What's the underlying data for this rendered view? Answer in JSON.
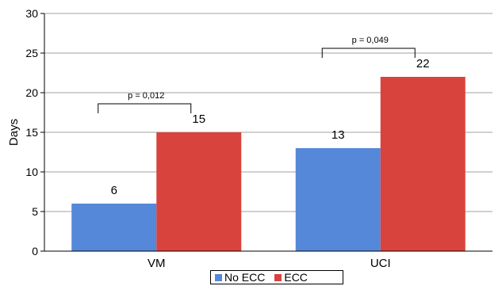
{
  "colors": {
    "no_ecc": "#5588d8",
    "ecc": "#d9433e",
    "grid": "#a0a0a0",
    "axis": "#000000"
  },
  "chart_data": {
    "type": "bar",
    "categories": [
      "VM",
      "UCI"
    ],
    "series": [
      {
        "name": "No ECC",
        "values": [
          6,
          13
        ]
      },
      {
        "name": "ECC",
        "values": [
          15,
          22
        ]
      }
    ],
    "ylabel": "Days",
    "ylim": [
      0,
      30
    ],
    "yticks": [
      0,
      5,
      10,
      15,
      20,
      25,
      30
    ],
    "grid": true,
    "legend_position": "bottom",
    "annotations": [
      {
        "category": "VM",
        "text": "p = 0,012"
      },
      {
        "category": "UCI",
        "text": "p = 0,049"
      }
    ]
  }
}
